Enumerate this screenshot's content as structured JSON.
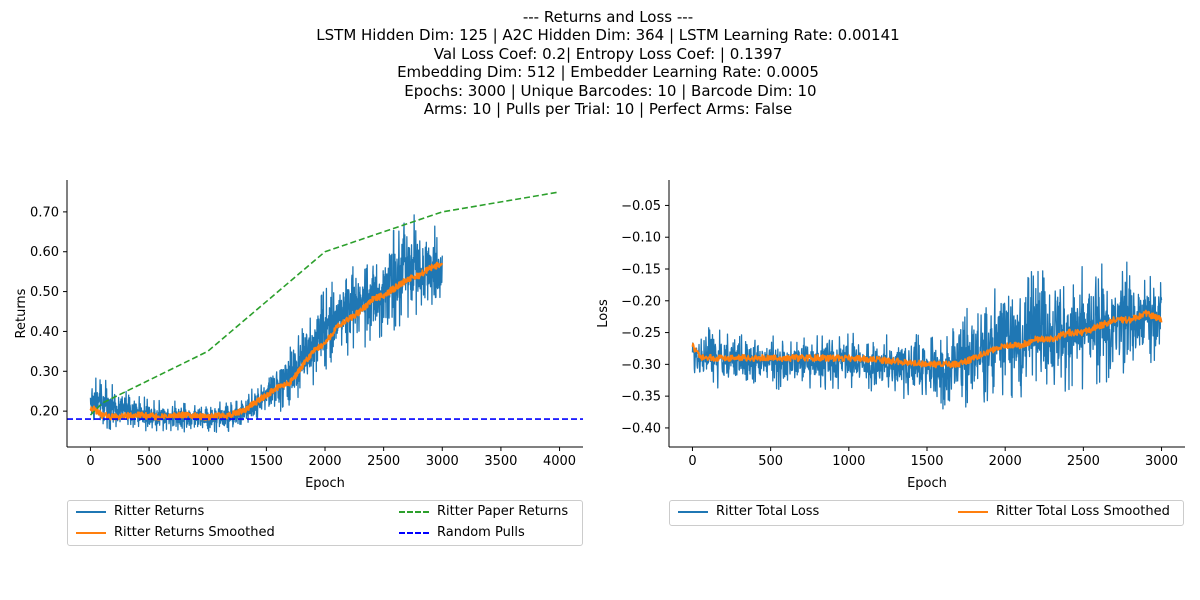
{
  "title_lines": [
    "--- Returns and Loss ---",
    "LSTM Hidden Dim: 125 | A2C Hidden Dim: 364 | LSTM Learning Rate: 0.00141",
    "Val Loss Coef: 0.2| Entropy Loss Coef: | 0.1397",
    "Embedding Dim: 512 | Embedder Learning Rate: 0.0005",
    " Epochs: 3000 | Unique Barcodes: 10 | Barcode Dim: 10",
    "Arms: 10 | Pulls per Trial: 10 | Perfect Arms: False"
  ],
  "chart_data": [
    {
      "type": "line",
      "xlabel": "Epoch",
      "ylabel": "Returns",
      "xlim": [
        -200,
        4200
      ],
      "ylim": [
        0.11,
        0.78
      ],
      "xticks": [
        0,
        500,
        1000,
        1500,
        2000,
        2500,
        3000,
        3500,
        4000
      ],
      "yticks": [
        0.2,
        0.3,
        0.4,
        0.5,
        0.6,
        0.7
      ],
      "legend_position": "below",
      "series": [
        {
          "name": "Ritter Returns",
          "color": "#1f77b4",
          "style": "solid",
          "noisy": true,
          "x_range": [
            0,
            3000
          ],
          "envelope_x": [
            0,
            200,
            500,
            1000,
            1300,
            1500,
            1700,
            1900,
            2000,
            2200,
            2500,
            2700,
            2900,
            3000
          ],
          "envelope_lower": [
            0.15,
            0.15,
            0.15,
            0.145,
            0.15,
            0.18,
            0.21,
            0.26,
            0.3,
            0.34,
            0.38,
            0.42,
            0.44,
            0.45
          ],
          "envelope_upper": [
            0.3,
            0.27,
            0.23,
            0.22,
            0.23,
            0.3,
            0.36,
            0.46,
            0.52,
            0.58,
            0.64,
            0.7,
            0.68,
            0.66
          ]
        },
        {
          "name": "Ritter Returns Smoothed",
          "color": "#ff7f0e",
          "style": "solid",
          "x": [
            0,
            100,
            200,
            400,
            600,
            800,
            1000,
            1200,
            1300,
            1400,
            1500,
            1600,
            1700,
            1800,
            1900,
            2000,
            2100,
            2200,
            2300,
            2400,
            2500,
            2600,
            2700,
            2800,
            2900,
            3000
          ],
          "y": [
            0.21,
            0.19,
            0.185,
            0.19,
            0.185,
            0.19,
            0.185,
            0.19,
            0.2,
            0.22,
            0.24,
            0.26,
            0.27,
            0.31,
            0.35,
            0.37,
            0.41,
            0.43,
            0.45,
            0.48,
            0.49,
            0.51,
            0.53,
            0.54,
            0.56,
            0.57
          ]
        },
        {
          "name": "Ritter Paper Returns",
          "color": "#2ca02c",
          "style": "dashed",
          "x": [
            0,
            100,
            1000,
            2000,
            3000,
            4000
          ],
          "y": [
            0.19,
            0.22,
            0.35,
            0.6,
            0.7,
            0.75
          ]
        },
        {
          "name": "Random Pulls",
          "color": "#0000ff",
          "style": "dashed",
          "hline": 0.18
        }
      ]
    },
    {
      "type": "line",
      "xlabel": "Epoch",
      "ylabel": "Loss",
      "xlim": [
        -150,
        3150
      ],
      "ylim": [
        -0.43,
        -0.01
      ],
      "xticks": [
        0,
        500,
        1000,
        1500,
        2000,
        2500,
        3000
      ],
      "yticks": [
        -0.4,
        -0.35,
        -0.3,
        -0.25,
        -0.2,
        -0.15,
        -0.1,
        -0.05
      ],
      "legend_position": "below",
      "series": [
        {
          "name": "Ritter Total Loss",
          "color": "#1f77b4",
          "style": "solid",
          "noisy": true,
          "x_range": [
            0,
            3000
          ],
          "envelope_x": [
            0,
            200,
            500,
            1000,
            1400,
            1600,
            1800,
            2000,
            2200,
            2400,
            2600,
            2800,
            3000
          ],
          "envelope_lower": [
            -0.33,
            -0.34,
            -0.34,
            -0.34,
            -0.36,
            -0.37,
            -0.37,
            -0.36,
            -0.36,
            -0.35,
            -0.33,
            -0.32,
            -0.3
          ],
          "envelope_upper": [
            -0.24,
            -0.24,
            -0.25,
            -0.25,
            -0.25,
            -0.24,
            -0.2,
            -0.16,
            -0.15,
            -0.15,
            -0.14,
            -0.13,
            -0.15
          ]
        },
        {
          "name": "Ritter Total Loss Smoothed",
          "color": "#ff7f0e",
          "style": "solid",
          "x": [
            0,
            50,
            200,
            500,
            800,
            1000,
            1300,
            1500,
            1700,
            1800,
            1900,
            2000,
            2100,
            2200,
            2300,
            2400,
            2500,
            2600,
            2700,
            2800,
            2900,
            3000
          ],
          "y": [
            -0.27,
            -0.29,
            -0.29,
            -0.29,
            -0.29,
            -0.29,
            -0.295,
            -0.3,
            -0.3,
            -0.29,
            -0.28,
            -0.27,
            -0.27,
            -0.26,
            -0.26,
            -0.25,
            -0.25,
            -0.24,
            -0.23,
            -0.23,
            -0.22,
            -0.23
          ]
        }
      ]
    }
  ]
}
